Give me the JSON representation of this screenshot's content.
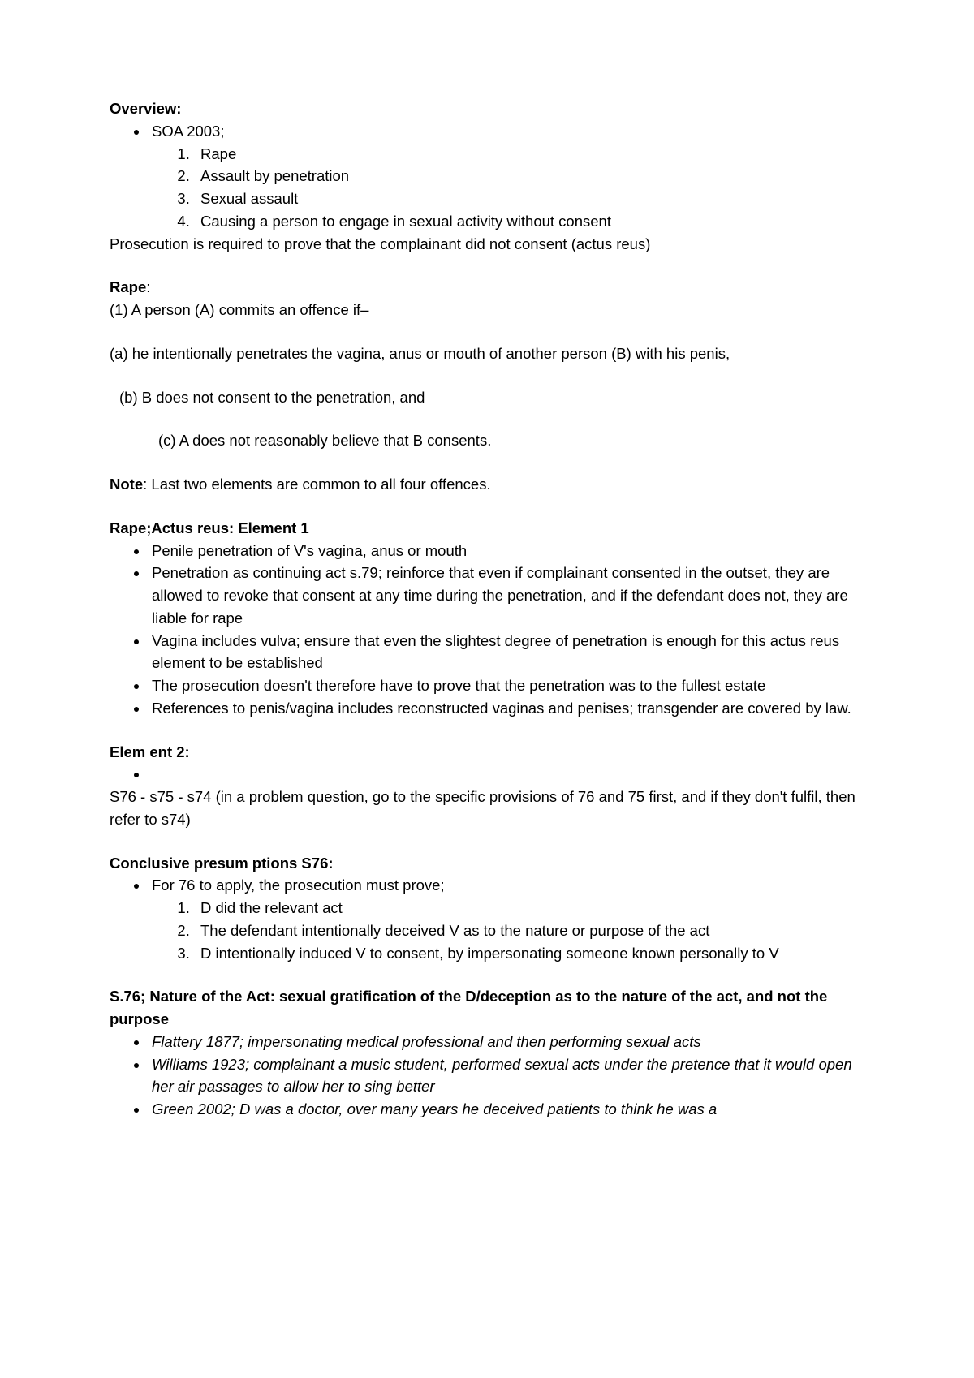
{
  "overview": {
    "heading": "Overview:",
    "list_label": "SOA 2003;",
    "items": [
      "Rape",
      "Assault by penetration",
      "Sexual assault",
      "Causing a person to engage in sexual activity without consent"
    ],
    "note": "Prosecution is required to prove that the complainant did not consent (actus reus)"
  },
  "rape": {
    "heading": "Rape",
    "colon": ":",
    "line1": "(1) A person (A) commits an offence if–",
    "line_a": "(a) he intentionally penetrates the vagina, anus or mouth of  another person (B) with his penis,",
    "line_b": "(b) B does not consent to the penetration, and",
    "line_c": "(c) A does not reasonably believe that B consents.",
    "note_label": "Note",
    "note_text": ": Last two elements are common to all four offences."
  },
  "elem1": {
    "heading": "Rape;Actus reus: Element 1",
    "bullets": [
      "Penile penetration of V's vagina, anus or mouth",
      "Penetration as continuing act s.79; reinforce that even if complainant consented in the outset, they are allowed to revoke that consent at any time during the penetration, and if the defendant does not, they are liable for rape",
      "Vagina includes vulva; ensure that even the slightest degree of penetration is enough for this actus reus element to be established",
      "The prosecution doesn't therefore have to prove that the penetration was to the fullest estate",
      "References to penis/vagina includes reconstructed vaginas and penises; transgender are covered by law."
    ]
  },
  "elem2": {
    "heading": "Elem ent 2:",
    "text": "S76 - s75 - s74 (in a problem question, go to the specific provisions of 76 and 75 first, and if they don't fulfil, then refer to s74)"
  },
  "s76": {
    "heading": "Conclusive presum ptions S76:",
    "lead": "For 76 to apply, the prosecution must prove;",
    "items": [
      "D did the relevant act",
      "The defendant intentionally deceived V as to the nature or purpose of the act",
      "D intentionally induced V to consent, by impersonating someone known personally to V"
    ]
  },
  "nature": {
    "heading": "S.76; Nature of the Act:  sexual gratification of the D/deception as to the nature of the act, and not the purpose",
    "bullets": [
      "Flattery 1877; impersonating medical professional and then performing sexual acts",
      "Williams 1923; complainant a music student, performed sexual acts under the pretence that it would open her air passages to allow her to sing better",
      "Green 2002; D was a doctor, over many years he deceived patients to think he was a"
    ]
  }
}
